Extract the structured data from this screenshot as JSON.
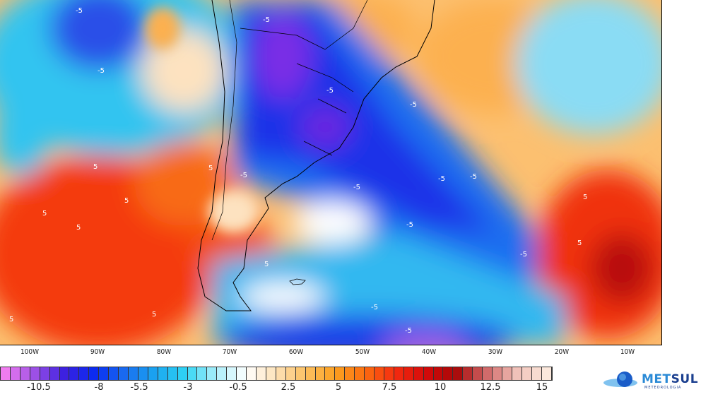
{
  "map": {
    "longitude_labels": [
      "100W",
      "90W",
      "80W",
      "70W",
      "60W",
      "50W",
      "40W",
      "30W",
      "20W",
      "10W"
    ],
    "contour_labels": [
      {
        "text": "-5",
        "lon": -101,
        "lat": null
      },
      {
        "text": "-5"
      },
      {
        "text": "-5"
      },
      {
        "text": "-5"
      },
      {
        "text": "-5"
      },
      {
        "text": "-5"
      },
      {
        "text": "-5"
      },
      {
        "text": "-5"
      },
      {
        "text": "-5"
      },
      {
        "text": "-5"
      },
      {
        "text": "-5"
      },
      {
        "text": "-5"
      },
      {
        "text": "-5"
      },
      {
        "text": "5"
      },
      {
        "text": "5"
      },
      {
        "text": "5"
      },
      {
        "text": "5"
      },
      {
        "text": "5"
      },
      {
        "text": "5"
      },
      {
        "text": "5"
      },
      {
        "text": "5"
      },
      {
        "text": "5"
      },
      {
        "text": "5"
      }
    ]
  },
  "colorbar": {
    "tick_labels": [
      "-10.5",
      "-8",
      "-5.5",
      "-3",
      "-0.5",
      "2.5",
      "5",
      "7.5",
      "10",
      "12.5",
      "15"
    ],
    "color_stops": [
      "#f07cf0",
      "#9a4fe6",
      "#3a1fe0",
      "#0a2cf0",
      "#1a6ef0",
      "#1aa6f0",
      "#30d4f4",
      "#a8eefa",
      "#ffffff",
      "#fde2b8",
      "#fcc060",
      "#fca020",
      "#fc6a10",
      "#f42a10",
      "#d40a0a",
      "#a80808",
      "#d06868",
      "#f0c0b8",
      "#fbe8dc"
    ]
  },
  "logo": {
    "brand_a": "MET",
    "brand_b": "SUL",
    "subtitle": "METEOROLOGIA"
  }
}
